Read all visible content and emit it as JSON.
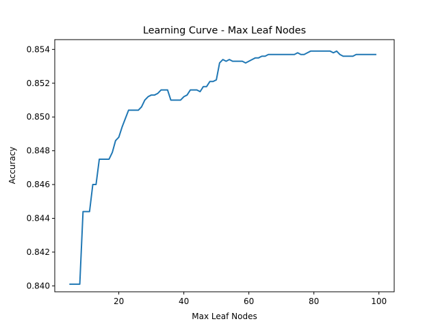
{
  "chart_data": {
    "type": "line",
    "title": "Learning Curve - Max Leaf Nodes",
    "xlabel": "Max Leaf Nodes",
    "ylabel": "Accuracy",
    "xlim": [
      0.3,
      104.7
    ],
    "ylim": [
      0.83965,
      0.85458
    ],
    "x_ticks": [
      20,
      40,
      60,
      80,
      100
    ],
    "x_tick_labels": [
      "20",
      "40",
      "60",
      "80",
      "100"
    ],
    "y_ticks": [
      0.84,
      0.842,
      0.844,
      0.846,
      0.848,
      0.85,
      0.852,
      0.854
    ],
    "y_tick_labels": [
      "0.840",
      "0.842",
      "0.844",
      "0.846",
      "0.848",
      "0.850",
      "0.852",
      "0.854"
    ],
    "grid": false,
    "series": [
      {
        "color": "#1f77b4",
        "x": [
          5,
          6,
          7,
          8,
          9,
          10,
          11,
          12,
          13,
          14,
          15,
          16,
          17,
          18,
          19,
          20,
          21,
          22,
          23,
          24,
          25,
          26,
          27,
          28,
          29,
          30,
          31,
          32,
          33,
          34,
          35,
          36,
          37,
          38,
          39,
          40,
          41,
          42,
          43,
          44,
          45,
          46,
          47,
          48,
          49,
          50,
          51,
          52,
          53,
          54,
          55,
          56,
          57,
          58,
          59,
          60,
          61,
          62,
          63,
          64,
          65,
          66,
          67,
          68,
          69,
          70,
          71,
          72,
          73,
          74,
          75,
          76,
          77,
          78,
          79,
          80,
          81,
          82,
          83,
          84,
          85,
          86,
          87,
          88,
          89,
          90,
          91,
          92,
          93,
          94,
          95,
          96,
          97,
          98,
          99
        ],
        "y": [
          0.8401,
          0.8401,
          0.8401,
          0.8401,
          0.8444,
          0.8444,
          0.8444,
          0.846,
          0.846,
          0.8475,
          0.8475,
          0.8475,
          0.8475,
          0.8479,
          0.8486,
          0.8488,
          0.8494,
          0.8499,
          0.8504,
          0.8504,
          0.8504,
          0.8504,
          0.8506,
          0.851,
          0.8512,
          0.8513,
          0.8513,
          0.8514,
          0.8516,
          0.8516,
          0.8516,
          0.851,
          0.851,
          0.851,
          0.851,
          0.8512,
          0.8513,
          0.8516,
          0.8516,
          0.8516,
          0.8515,
          0.8518,
          0.8518,
          0.8521,
          0.8521,
          0.8522,
          0.8532,
          0.8534,
          0.8533,
          0.8534,
          0.8533,
          0.8533,
          0.8533,
          0.8533,
          0.8532,
          0.8533,
          0.8534,
          0.8535,
          0.8535,
          0.8536,
          0.8536,
          0.8537,
          0.8537,
          0.8537,
          0.8537,
          0.8537,
          0.8537,
          0.8537,
          0.8537,
          0.8537,
          0.8538,
          0.8537,
          0.8537,
          0.8538,
          0.8539,
          0.8539,
          0.8539,
          0.8539,
          0.8539,
          0.8539,
          0.8539,
          0.8538,
          0.8539,
          0.8537,
          0.8536,
          0.8536,
          0.8536,
          0.8536,
          0.8537,
          0.8537,
          0.8537,
          0.8537,
          0.8537,
          0.8537,
          0.8537
        ]
      }
    ]
  }
}
